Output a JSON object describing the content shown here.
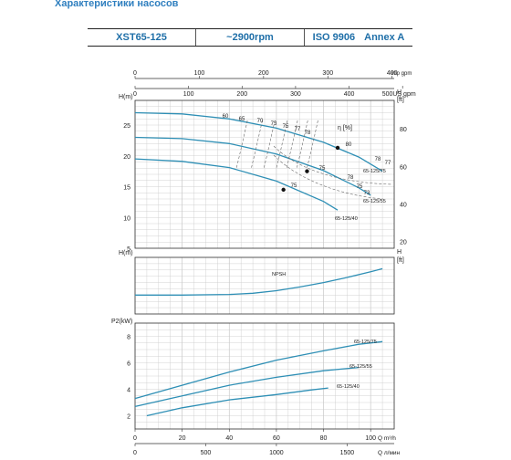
{
  "header": {
    "title": "Характеристики насосов",
    "model": "XST65-125",
    "speed": "~2900rpm",
    "standard": "ISO 9906",
    "grade": "Annex A"
  },
  "colors": {
    "curve": "#2e8fb5",
    "efficiency": "#666666",
    "grid": "#c8c8c8",
    "heading": "#2f7fbf"
  },
  "chart_data": [
    {
      "type": "line",
      "name": "head",
      "top_axes": [
        {
          "unit": "Imp gpm",
          "ticks": [
            0,
            100,
            200,
            300,
            400
          ],
          "per_m3h": 3.666
        },
        {
          "unit": "US gpm",
          "ticks": [
            0,
            100,
            200,
            300,
            400,
            500
          ],
          "per_m3h": 4.403
        }
      ],
      "xlim": [
        0,
        110
      ],
      "ylim": [
        5,
        29
      ],
      "ylabel": "H(m)",
      "yticks": [
        5,
        10,
        15,
        20,
        25
      ],
      "ylabel_right": "H [ft]",
      "yticks_right": [
        20,
        40,
        60,
        80
      ],
      "eff_label": "η [%]",
      "series": [
        {
          "name": "65-125/75",
          "x": [
            0,
            20,
            40,
            60,
            80,
            95,
            105
          ],
          "y": [
            27.0,
            26.8,
            26.0,
            24.5,
            22.2,
            19.8,
            17.5
          ]
        },
        {
          "name": "65-125/55",
          "x": [
            0,
            20,
            40,
            60,
            80,
            95,
            100
          ],
          "y": [
            23.0,
            22.8,
            22.0,
            20.3,
            17.6,
            14.8,
            13.6
          ]
        },
        {
          "name": "65-125/40",
          "x": [
            0,
            20,
            40,
            60,
            80,
            86
          ],
          "y": [
            19.5,
            19.1,
            18.1,
            15.9,
            12.6,
            11.2
          ]
        }
      ],
      "efficiency_labels": [
        "60",
        "65",
        "70",
        "73",
        "75",
        "77",
        "78",
        "80",
        "78",
        "77",
        "78",
        "75",
        "73",
        "75",
        "75"
      ],
      "bep_points": [
        {
          "label": "80",
          "x": 86,
          "y": 21.3
        },
        {
          "label": "78",
          "x": 73,
          "y": 17.5
        },
        {
          "label": "75",
          "x": 63,
          "y": 14.5
        }
      ]
    },
    {
      "type": "line",
      "name": "npsh",
      "ylabel": "H(m)",
      "ylabel_right": "H [ft]",
      "series": [
        {
          "name": "NPSH",
          "x": [
            0,
            20,
            40,
            50,
            60,
            70,
            80,
            90,
            100,
            105
          ],
          "y": [
            3.0,
            3.0,
            3.05,
            3.15,
            3.35,
            3.65,
            4.0,
            4.4,
            4.85,
            5.1
          ]
        }
      ]
    },
    {
      "type": "line",
      "name": "power",
      "ylabel": "P2(kW)",
      "yticks": [
        2,
        4,
        6,
        8
      ],
      "ylim": [
        1,
        9
      ],
      "xlabel": "Q m³/h",
      "xticks": [
        0,
        20,
        40,
        60,
        80,
        100
      ],
      "bottom_axis": {
        "unit": "Q л/мин",
        "ticks": [
          0,
          500,
          1000,
          1500
        ]
      },
      "series": [
        {
          "name": "65-125/75",
          "x": [
            0,
            20,
            40,
            60,
            80,
            95,
            105
          ],
          "y": [
            3.3,
            4.3,
            5.3,
            6.2,
            6.9,
            7.4,
            7.6
          ]
        },
        {
          "name": "65-125/55",
          "x": [
            0,
            20,
            40,
            60,
            80,
            95
          ],
          "y": [
            2.7,
            3.5,
            4.3,
            4.9,
            5.4,
            5.65
          ]
        },
        {
          "name": "65-125/40",
          "x": [
            5,
            20,
            40,
            60,
            75,
            82
          ],
          "y": [
            2.0,
            2.6,
            3.2,
            3.6,
            3.95,
            4.1
          ]
        }
      ]
    }
  ]
}
